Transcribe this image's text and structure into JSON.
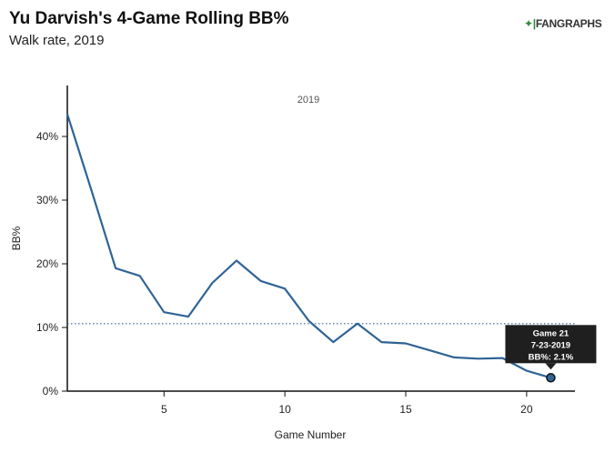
{
  "header": {
    "title": "Yu Darvish's 4-Game Rolling BB%",
    "subtitle": "Walk rate, 2019",
    "logo_text": "FANGRAPHS"
  },
  "chart_data": {
    "type": "line",
    "title": "Yu Darvish's 4-Game Rolling BB%",
    "subtitle": "Walk rate, 2019",
    "panel_label": "2019",
    "xlabel": "Game Number",
    "ylabel": "BB%",
    "xlim": [
      1,
      22
    ],
    "ylim": [
      0,
      48
    ],
    "x_ticks": [
      5,
      10,
      15,
      20
    ],
    "y_ticks": [
      0,
      10,
      20,
      30,
      40
    ],
    "y_tick_labels": [
      "0%",
      "10%",
      "20%",
      "30%",
      "40%"
    ],
    "reference_line": {
      "value": 10.6,
      "style": "dotted"
    },
    "series": [
      {
        "name": "BB%",
        "color": "#2f6496",
        "x": [
          1,
          2,
          3,
          4,
          5,
          6,
          7,
          8,
          9,
          10,
          11,
          12,
          13,
          14,
          15,
          16,
          17,
          18,
          19,
          20,
          21
        ],
        "values": [
          43.5,
          31.5,
          19.3,
          18.1,
          12.4,
          11.7,
          17.0,
          20.5,
          17.3,
          16.1,
          11.0,
          7.7,
          10.6,
          7.7,
          7.5,
          6.4,
          5.3,
          5.1,
          5.2,
          3.2,
          2.1
        ]
      }
    ],
    "tooltip": {
      "game": "Game 21",
      "date": "7-23-2019",
      "value": "BB%: 2.1%",
      "x": 21,
      "y": 2.1
    }
  }
}
